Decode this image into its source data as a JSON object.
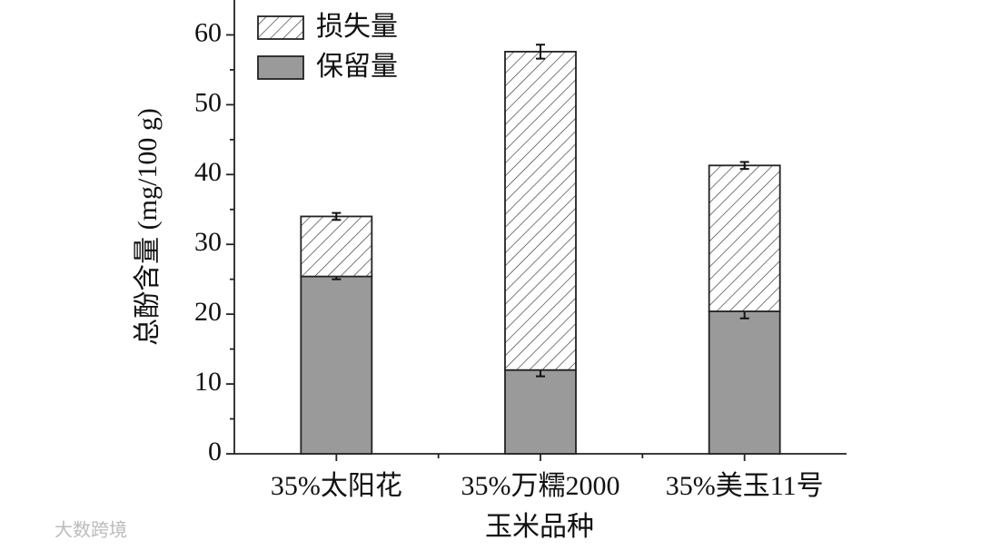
{
  "chart_data": {
    "type": "stacked_bar",
    "ylabel": "总酚含量 (mg/100 g)",
    "xlabel": "玉米品种",
    "categories": [
      "35%太阳花",
      "35%万糯2000",
      "35%美玉11号"
    ],
    "series": [
      {
        "name": "保留量",
        "color": "#9a9a9a",
        "pattern": "solid",
        "values": [
          25.4,
          12.0,
          20.4
        ],
        "errors": [
          0.4,
          0.9,
          1.0
        ]
      },
      {
        "name": "损失量",
        "color": "#ffffff",
        "pattern": "hatch",
        "values": [
          8.6,
          45.6,
          20.9
        ],
        "errors": [
          0.5,
          1.0,
          0.5
        ]
      }
    ],
    "ylim": [
      0,
      65
    ],
    "yticks": [
      0,
      10,
      20,
      30,
      40,
      50,
      60
    ],
    "yminorticks": [
      5,
      15,
      25,
      35,
      45,
      55
    ],
    "legend": "top-left",
    "watermark": "大数跨境"
  }
}
